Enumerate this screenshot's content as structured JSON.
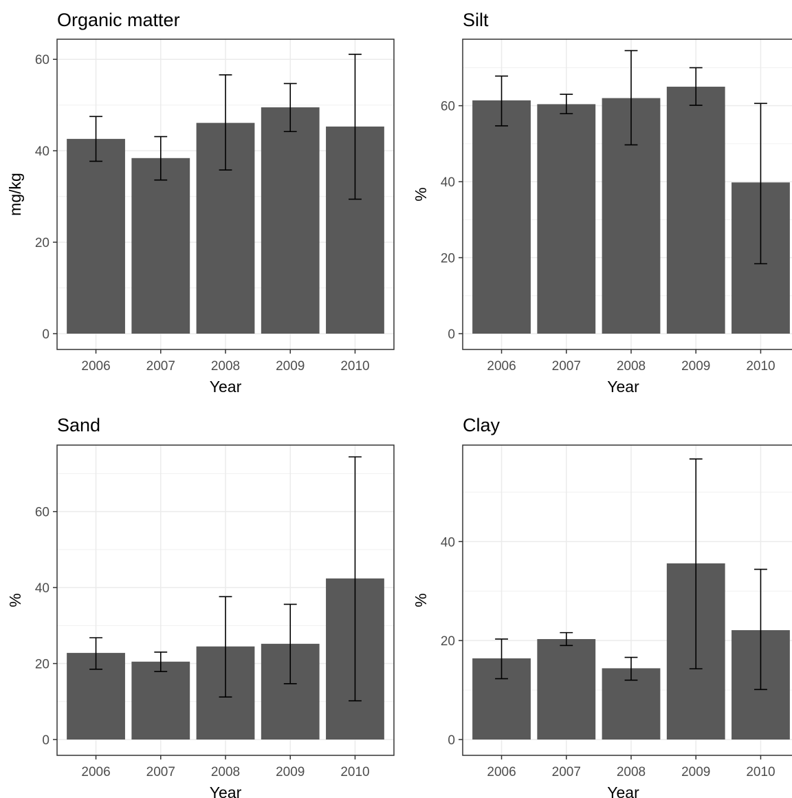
{
  "chart_data": [
    {
      "type": "bar",
      "title": "Organic matter",
      "xlabel": "Year",
      "ylabel": "mg/kg",
      "categories": [
        "2006",
        "2007",
        "2008",
        "2009",
        "2010"
      ],
      "values": [
        42.6,
        38.4,
        46.1,
        49.5,
        45.3
      ],
      "error_low": [
        37.7,
        33.6,
        35.8,
        44.2,
        29.4
      ],
      "error_high": [
        47.5,
        43.1,
        56.6,
        54.7,
        61.1
      ],
      "ylim": [
        0,
        64.4
      ],
      "yticks": [
        0,
        20,
        40,
        60
      ],
      "grid": true
    },
    {
      "type": "bar",
      "title": "Silt",
      "xlabel": "Year",
      "ylabel": "%",
      "categories": [
        "2006",
        "2007",
        "2008",
        "2009",
        "2010"
      ],
      "values": [
        61.4,
        60.4,
        62.0,
        65.0,
        39.8
      ],
      "error_low": [
        54.7,
        57.9,
        49.7,
        60.1,
        18.4
      ],
      "error_high": [
        67.8,
        63.0,
        74.5,
        70.0,
        60.6
      ],
      "ylim": [
        0,
        77.5
      ],
      "yticks": [
        0,
        20,
        40,
        60
      ],
      "grid": true
    },
    {
      "type": "bar",
      "title": "Sand",
      "xlabel": "Year",
      "ylabel": "%",
      "categories": [
        "2006",
        "2007",
        "2008",
        "2009",
        "2010"
      ],
      "values": [
        22.8,
        20.5,
        24.5,
        25.2,
        42.4
      ],
      "error_low": [
        18.5,
        17.9,
        11.2,
        14.7,
        10.2
      ],
      "error_high": [
        26.8,
        23.0,
        37.6,
        35.6,
        74.4
      ],
      "ylim": [
        0,
        77.5
      ],
      "yticks": [
        0,
        20,
        40,
        60
      ],
      "grid": true
    },
    {
      "type": "bar",
      "title": "Clay",
      "xlabel": "Year",
      "ylabel": "%",
      "categories": [
        "2006",
        "2007",
        "2008",
        "2009",
        "2010"
      ],
      "values": [
        16.4,
        20.3,
        14.4,
        35.6,
        22.1
      ],
      "error_low": [
        12.3,
        19.0,
        12.0,
        14.3,
        10.1
      ],
      "error_high": [
        20.3,
        21.6,
        16.6,
        56.7,
        34.4
      ],
      "ylim": [
        0,
        59.5
      ],
      "yticks": [
        0,
        20,
        40
      ],
      "grid": true
    }
  ]
}
